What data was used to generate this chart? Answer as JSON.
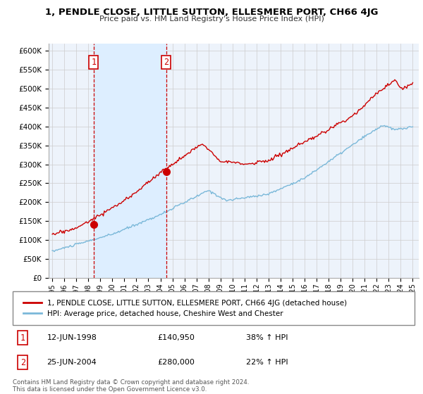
{
  "title": "1, PENDLE CLOSE, LITTLE SUTTON, ELLESMERE PORT, CH66 4JG",
  "subtitle": "Price paid vs. HM Land Registry's House Price Index (HPI)",
  "ylabel_ticks": [
    "£0",
    "£50K",
    "£100K",
    "£150K",
    "£200K",
    "£250K",
    "£300K",
    "£350K",
    "£400K",
    "£450K",
    "£500K",
    "£550K",
    "£600K"
  ],
  "ytick_vals": [
    0,
    50000,
    100000,
    150000,
    200000,
    250000,
    300000,
    350000,
    400000,
    450000,
    500000,
    550000,
    600000
  ],
  "ylim": [
    0,
    620000
  ],
  "xlim_start": 1994.7,
  "xlim_end": 2025.5,
  "purchase1_x": 1998.45,
  "purchase1_y": 140950,
  "purchase1_label": "1",
  "purchase2_x": 2004.48,
  "purchase2_y": 280000,
  "purchase2_label": "2",
  "hpi_color": "#7ab8d9",
  "price_color": "#cc0000",
  "shade_color": "#ddeeff",
  "grid_color": "#cccccc",
  "bg_color": "#edf3fb",
  "legend_line1": "1, PENDLE CLOSE, LITTLE SUTTON, ELLESMERE PORT, CH66 4JG (detached house)",
  "legend_line2": "HPI: Average price, detached house, Cheshire West and Chester",
  "table_row1_num": "1",
  "table_row1_date": "12-JUN-1998",
  "table_row1_price": "£140,950",
  "table_row1_hpi": "38% ↑ HPI",
  "table_row2_num": "2",
  "table_row2_date": "25-JUN-2004",
  "table_row2_price": "£280,000",
  "table_row2_hpi": "22% ↑ HPI",
  "footnote": "Contains HM Land Registry data © Crown copyright and database right 2024.\nThis data is licensed under the Open Government Licence v3.0.",
  "vline1_x": 1998.45,
  "vline2_x": 2004.48
}
